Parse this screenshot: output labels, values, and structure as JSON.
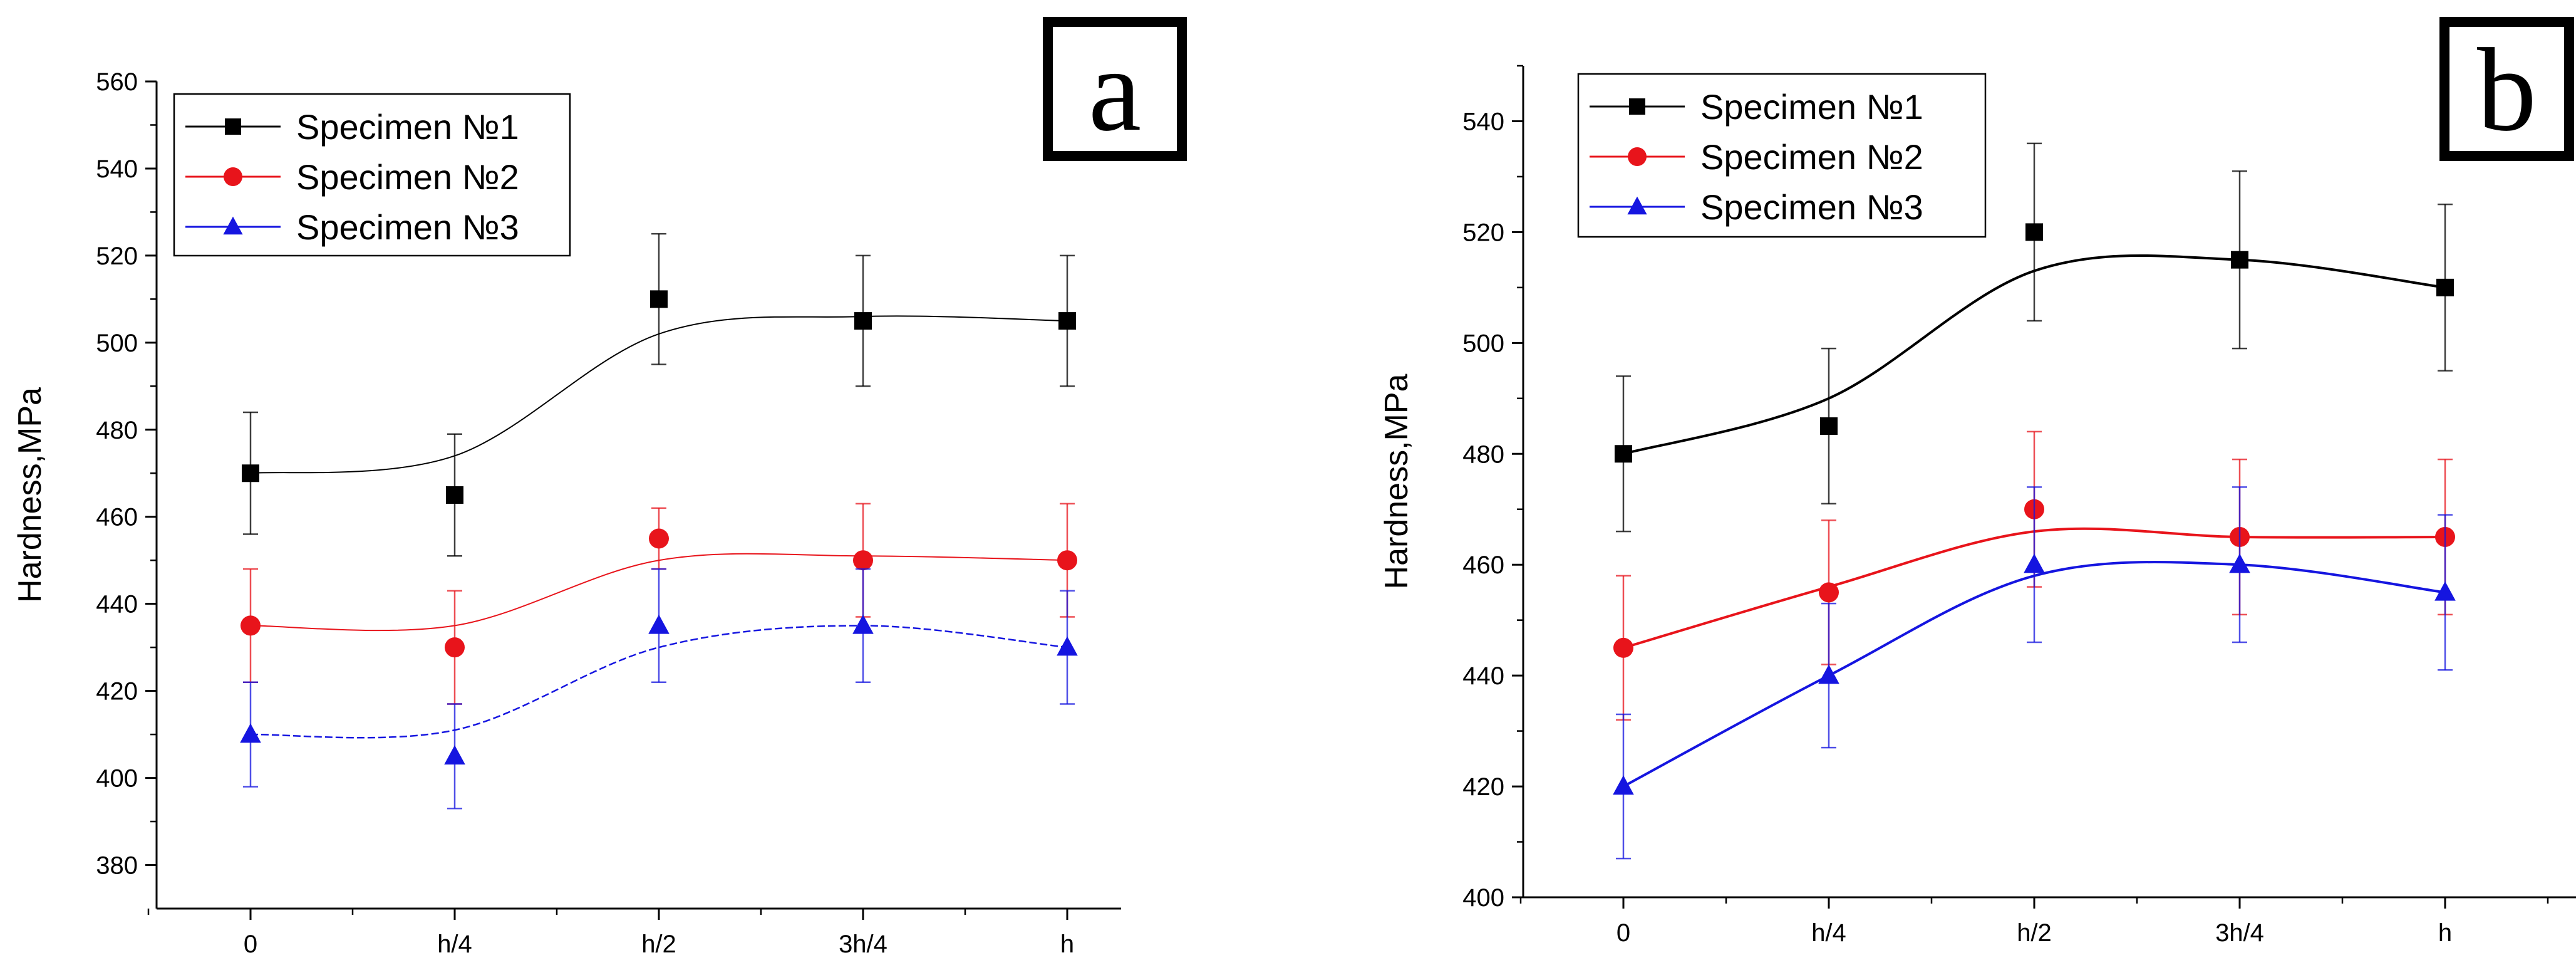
{
  "chart_data": [
    {
      "type": "line",
      "panel_label": "a",
      "title": "",
      "xlabel": "",
      "ylabel": "Hardness,MPa",
      "categories": [
        "0",
        "h/4",
        "h/2",
        "3h/4",
        "h"
      ],
      "ylim": [
        370,
        560
      ],
      "yticks": [
        380,
        400,
        420,
        440,
        460,
        480,
        500,
        520,
        540,
        560
      ],
      "legend_position": "top-left",
      "series": [
        {
          "name": "Specimen №1",
          "marker": "square",
          "color": "#000000",
          "line_style": "thin",
          "values": [
            470,
            465,
            510,
            505,
            505
          ],
          "errors": [
            14,
            14,
            15,
            15,
            15
          ],
          "fit": [
            470,
            474,
            502,
            506,
            505
          ]
        },
        {
          "name": "Specimen №2",
          "marker": "circle",
          "color": "#e8141b",
          "line_style": "thin",
          "values": [
            435,
            430,
            455,
            450,
            450
          ],
          "errors": [
            13,
            13,
            7,
            13,
            13
          ],
          "fit": [
            435,
            435,
            450,
            451,
            450
          ]
        },
        {
          "name": "Specimen №3",
          "marker": "triangle",
          "color": "#1515e0",
          "line_style": "dashed",
          "values": [
            410,
            405,
            435,
            435,
            430
          ],
          "errors": [
            12,
            12,
            13,
            13,
            13
          ],
          "fit": [
            410,
            411,
            430,
            435,
            430
          ]
        }
      ]
    },
    {
      "type": "line",
      "panel_label": "b",
      "title": "",
      "xlabel": "",
      "ylabel": "Hardness,MPa",
      "categories": [
        "0",
        "h/4",
        "h/2",
        "3h/4",
        "h"
      ],
      "ylim": [
        400,
        550
      ],
      "yticks": [
        400,
        420,
        440,
        460,
        480,
        500,
        520,
        540
      ],
      "legend_position": "top-left",
      "series": [
        {
          "name": "Specimen №1",
          "marker": "square",
          "color": "#000000",
          "line_style": "solid",
          "values": [
            480,
            485,
            520,
            515,
            510
          ],
          "errors": [
            14,
            14,
            16,
            16,
            15
          ],
          "fit": [
            480,
            490,
            513,
            515,
            510
          ]
        },
        {
          "name": "Specimen №2",
          "marker": "circle",
          "color": "#e8141b",
          "line_style": "solid",
          "values": [
            445,
            455,
            470,
            465,
            465
          ],
          "errors": [
            13,
            13,
            14,
            14,
            14
          ],
          "fit": [
            445,
            456,
            466,
            465,
            465
          ]
        },
        {
          "name": "Specimen №3",
          "marker": "triangle",
          "color": "#1515e0",
          "line_style": "solid",
          "values": [
            420,
            440,
            460,
            460,
            455
          ],
          "errors": [
            13,
            13,
            14,
            14,
            14
          ],
          "fit": [
            420,
            440,
            458,
            460,
            455
          ]
        }
      ]
    }
  ]
}
